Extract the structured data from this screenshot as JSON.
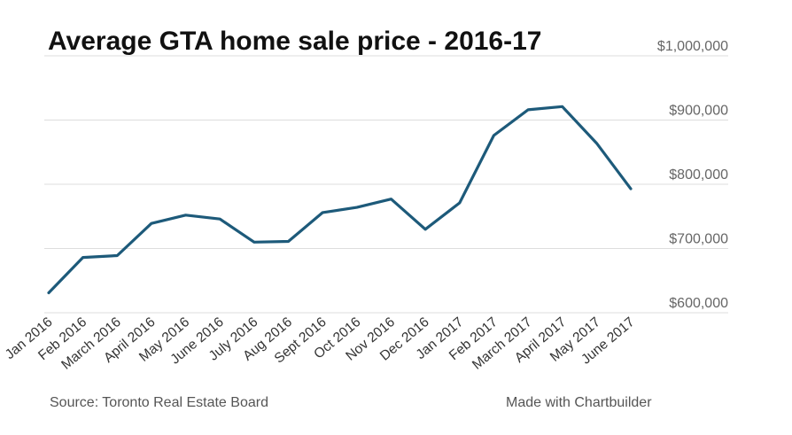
{
  "chart_data": {
    "type": "line",
    "title": "Average GTA home sale price - 2016-17",
    "xlabel": "",
    "ylabel": "",
    "categories": [
      "Jan 2016",
      "Feb 2016",
      "March 2016",
      "April 2016",
      "May 2016",
      "June 2016",
      "July 2016",
      "Aug 2016",
      "Sept 2016",
      "Oct 2016",
      "Nov 2016",
      "Dec 2016",
      "Jan 2017",
      "Feb 2017",
      "March 2017",
      "April 2017",
      "May 2017",
      "June 2017"
    ],
    "series": [
      {
        "values": [
          631000,
          686000,
          689000,
          739000,
          752000,
          746000,
          710000,
          711000,
          756000,
          764000,
          777000,
          730000,
          771000,
          876000,
          916000,
          921000,
          864000,
          793000
        ]
      }
    ],
    "ylim": [
      600000,
      1000000
    ],
    "yticks": [
      600000,
      700000,
      800000,
      900000,
      1000000
    ],
    "ytick_labels": [
      "$600,000",
      "$700,000",
      "$800,000",
      "$900,000",
      "$1,000,000"
    ],
    "y_axis_position": "right",
    "grid": true,
    "line_color": "#1d5a7a",
    "grid_color": "#dddddd",
    "source": "Source: Toronto Real Estate Board",
    "credit": "Made with Chartbuilder"
  }
}
